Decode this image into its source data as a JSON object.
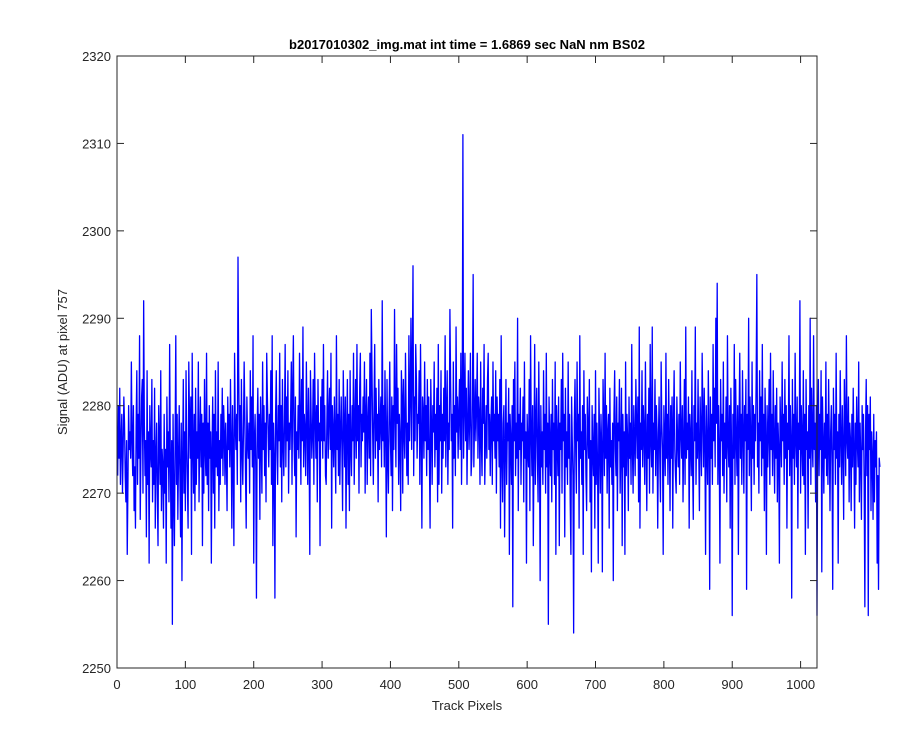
{
  "chart_data": {
    "type": "line",
    "title": "b2017010302_img.mat int time = 1.6869 sec  NaN nm BS02",
    "xlabel": "Track Pixels",
    "ylabel": "Signal (ADU) at pixel 757",
    "xlim": [
      0,
      1024
    ],
    "ylim": [
      2250,
      2320
    ],
    "xticks": [
      0,
      100,
      200,
      300,
      400,
      500,
      600,
      700,
      800,
      900,
      1000
    ],
    "yticks": [
      2250,
      2260,
      2270,
      2280,
      2290,
      2300,
      2310,
      2320
    ],
    "grid": false,
    "legend": "none",
    "line_color": "#0000ff",
    "series": [
      {
        "x_start": 1,
        "x_step": 1,
        "values": [
          2272,
          2280,
          2274,
          2282,
          2271,
          2276,
          2279,
          2270,
          2275,
          2281,
          2278,
          2272,
          2269,
          2276,
          2263,
          2271,
          2280,
          2275,
          2277,
          2274,
          2285,
          2276,
          2272,
          2280,
          2268,
          2273,
          2266,
          2278,
          2284,
          2271,
          2279,
          2274,
          2288,
          2267,
          2275,
          2281,
          2283,
          2270,
          2292,
          2278,
          2272,
          2276,
          2265,
          2284,
          2271,
          2277,
          2262,
          2280,
          2275,
          2273,
          2283,
          2269,
          2276,
          2271,
          2282,
          2266,
          2274,
          2278,
          2270,
          2264,
          2280,
          2276,
          2271,
          2284,
          2268,
          2275,
          2273,
          2266,
          2279,
          2270,
          2275,
          2262,
          2281,
          2273,
          2277,
          2269,
          2287,
          2274,
          2266,
          2276,
          2255,
          2279,
          2270,
          2264,
          2276,
          2288,
          2271,
          2279,
          2267,
          2274,
          2280,
          2272,
          2265,
          2278,
          2260,
          2274,
          2283,
          2270,
          2277,
          2268,
          2284,
          2275,
          2271,
          2266,
          2285,
          2279,
          2274,
          2281,
          2263,
          2286,
          2276,
          2270,
          2279,
          2268,
          2282,
          2271,
          2277,
          2274,
          2285,
          2269,
          2276,
          2281,
          2273,
          2279,
          2264,
          2278,
          2270,
          2283,
          2275,
          2272,
          2286,
          2271,
          2278,
          2268,
          2280,
          2274,
          2277,
          2262,
          2275,
          2281,
          2270,
          2279,
          2266,
          2284,
          2273,
          2277,
          2272,
          2285,
          2268,
          2276,
          2271,
          2279,
          2274,
          2282,
          2272,
          2280,
          2277,
          2271,
          2278,
          2274,
          2268,
          2281,
          2275,
          2279,
          2273,
          2283,
          2276,
          2266,
          2280,
          2274,
          2264,
          2286,
          2278,
          2275,
          2279,
          2271,
          2297,
          2284,
          2276,
          2280,
          2269,
          2283,
          2275,
          2271,
          2277,
          2285,
          2279,
          2272,
          2266,
          2281,
          2276,
          2274,
          2278,
          2270,
          2284,
          2275,
          2281,
          2273,
          2288,
          2262,
          2276,
          2279,
          2273,
          2258,
          2277,
          2282,
          2274,
          2279,
          2267,
          2281,
          2276,
          2270,
          2285,
          2275,
          2280,
          2272,
          2278,
          2269,
          2286,
          2281,
          2277,
          2273,
          2279,
          2275,
          2284,
          2271,
          2288,
          2264,
          2278,
          2274,
          2258,
          2279,
          2284,
          2275,
          2271,
          2280,
          2276,
          2286,
          2273,
          2280,
          2269,
          2283,
          2276,
          2272,
          2278,
          2287,
          2273,
          2281,
          2276,
          2284,
          2270,
          2278,
          2275,
          2279,
          2285,
          2271,
          2282,
          2288,
          2276,
          2272,
          2281,
          2265,
          2277,
          2275,
          2280,
          2274,
          2286,
          2279,
          2271,
          2283,
          2276,
          2289,
          2273,
          2279,
          2277,
          2272,
          2285,
          2278,
          2271,
          2282,
          2276,
          2263,
          2284,
          2279,
          2274,
          2277,
          2283,
          2271,
          2286,
          2279,
          2274,
          2280,
          2269,
          2283,
          2276,
          2278,
          2264,
          2281,
          2276,
          2283,
          2274,
          2287,
          2276,
          2280,
          2272,
          2271,
          2278,
          2284,
          2274,
          2279,
          2282,
          2275,
          2286,
          2266,
          2280,
          2277,
          2273,
          2281,
          2276,
          2270,
          2288,
          2275,
          2279,
          2272,
          2283,
          2271,
          2277,
          2281,
          2275,
          2268,
          2284,
          2278,
          2273,
          2281,
          2266,
          2277,
          2283,
          2271,
          2279,
          2268,
          2284,
          2275,
          2272,
          2280,
          2276,
          2286,
          2271,
          2278,
          2283,
          2274,
          2287,
          2276,
          2280,
          2270,
          2282,
          2286,
          2273,
          2279,
          2276,
          2281,
          2277,
          2285,
          2270,
          2279,
          2283,
          2271,
          2278,
          2281,
          2274,
          2286,
          2272,
          2291,
          2284,
          2277,
          2271,
          2280,
          2287,
          2274,
          2282,
          2276,
          2279,
          2269,
          2283,
          2275,
          2278,
          2281,
          2273,
          2292,
          2276,
          2280,
          2273,
          2284,
          2277,
          2265,
          2283,
          2274,
          2270,
          2279,
          2285,
          2276,
          2272,
          2281,
          2268,
          2280,
          2275,
          2291,
          2279,
          2273,
          2287,
          2278,
          2282,
          2271,
          2279,
          2276,
          2268,
          2284,
          2281,
          2270,
          2283,
          2277,
          2274,
          2286,
          2279,
          2272,
          2278,
          2271,
          2288,
          2276,
          2281,
          2290,
          2275,
          2285,
          2296,
          2272,
          2281,
          2276,
          2287,
          2283,
          2274,
          2279,
          2278,
          2284,
          2271,
          2287,
          2277,
          2266,
          2281,
          2279,
          2274,
          2285,
          2276,
          2280,
          2272,
          2283,
          2275,
          2281,
          2274,
          2266,
          2283,
          2278,
          2271,
          2280,
          2277,
          2285,
          2273,
          2279,
          2275,
          2282,
          2269,
          2287,
          2271,
          2280,
          2276,
          2284,
          2270,
          2279,
          2274,
          2282,
          2276,
          2288,
          2273,
          2279,
          2284,
          2271,
          2278,
          2275,
          2291,
          2283,
          2276,
          2279,
          2266,
          2285,
          2274,
          2280,
          2272,
          2289,
          2277,
          2281,
          2274,
          2279,
          2283,
          2275,
          2286,
          2271,
          2279,
          2311,
          2274,
          2280,
          2286,
          2276,
          2282,
          2271,
          2278,
          2284,
          2275,
          2279,
          2286,
          2272,
          2274,
          2281,
          2295,
          2273,
          2278,
          2283,
          2276,
          2280,
          2286,
          2274,
          2281,
          2279,
          2271,
          2285,
          2276,
          2272,
          2282,
          2278,
          2287,
          2271,
          2276,
          2280,
          2274,
          2283,
          2286,
          2275,
          2279,
          2272,
          2278,
          2281,
          2271,
          2285,
          2276,
          2279,
          2274,
          2284,
          2270,
          2281,
          2276,
          2279,
          2273,
          2283,
          2266,
          2288,
          2274,
          2269,
          2278,
          2280,
          2265,
          2275,
          2283,
          2271,
          2278,
          2276,
          2282,
          2263,
          2279,
          2276,
          2271,
          2280,
          2257,
          2283,
          2276,
          2285,
          2272,
          2278,
          2274,
          2290,
          2268,
          2279,
          2275,
          2282,
          2271,
          2278,
          2276,
          2281,
          2269,
          2285,
          2274,
          2277,
          2262,
          2279,
          2275,
          2273,
          2283,
          2268,
          2288,
          2277,
          2272,
          2280,
          2264,
          2275,
          2287,
          2271,
          2278,
          2282,
          2274,
          2269,
          2285,
          2276,
          2260,
          2280,
          2273,
          2277,
          2271,
          2284,
          2275,
          2279,
          2270,
          2286,
          2273,
          2278,
          2255,
          2281,
          2276,
          2272,
          2279,
          2269,
          2283,
          2275,
          2278,
          2271,
          2285,
          2263,
          2280,
          2276,
          2272,
          2281,
          2264,
          2278,
          2275,
          2283,
          2270,
          2286,
          2276,
          2279,
          2265,
          2282,
          2273,
          2277,
          2271,
          2285,
          2274,
          2279,
          2269,
          2263,
          2281,
          2276,
          2272,
          2254,
          2278,
          2283,
          2275,
          2270,
          2285,
          2276,
          2279,
          2266,
          2288,
          2274,
          2277,
          2271,
          2280,
          2263,
          2284,
          2275,
          2279,
          2272,
          2268,
          2281,
          2277,
          2274,
          2283,
          2269,
          2276,
          2261,
          2280,
          2275,
          2272,
          2279,
          2266,
          2284,
          2271,
          2278,
          2273,
          2262,
          2282,
          2276,
          2270,
          2279,
          2275,
          2261,
          2283,
          2278,
          2272,
          2286,
          2274,
          2280,
          2270,
          2277,
          2279,
          2266,
          2282,
          2273,
          2276,
          2271,
          2278,
          2260,
          2279,
          2284,
          2275,
          2272,
          2281,
          2268,
          2278,
          2276,
          2283,
          2270,
          2275,
          2282,
          2264,
          2279,
          2273,
          2277,
          2263,
          2285,
          2272,
          2279,
          2276,
          2268,
          2281,
          2274,
          2278,
          2271,
          2287,
          2275,
          2270,
          2280,
          2276,
          2272,
          2283,
          2278,
          2274,
          2281,
          2269,
          2289,
          2266,
          2278,
          2275,
          2284,
          2273,
          2280,
          2277,
          2271,
          2285,
          2276,
          2268,
          2279,
          2274,
          2282,
          2270,
          2287,
          2276,
          2273,
          2289,
          2270,
          2278,
          2275,
          2283,
          2272,
          2280,
          2277,
          2266,
          2276,
          2281,
          2274,
          2269,
          2285,
          2278,
          2275,
          2263,
          2280,
          2276,
          2272,
          2286,
          2274,
          2279,
          2271,
          2283,
          2276,
          2268,
          2280,
          2274,
          2281,
          2266,
          2278,
          2284,
          2275,
          2272,
          2270,
          2281,
          2276,
          2273,
          2279,
          2271,
          2285,
          2277,
          2274,
          2280,
          2269,
          2276,
          2283,
          2271,
          2289,
          2274,
          2278,
          2275,
          2281,
          2266,
          2279,
          2276,
          2272,
          2284,
          2273,
          2267,
          2280,
          2276,
          2289,
          2271,
          2278,
          2274,
          2283,
          2275,
          2268,
          2281,
          2277,
          2272,
          2286,
          2279,
          2273,
          2282,
          2276,
          2263,
          2280,
          2275,
          2271,
          2284,
          2277,
          2259,
          2281,
          2274,
          2279,
          2271,
          2287,
          2276,
          2282,
          2273,
          2290,
          2278,
          2294,
          2271,
          2280,
          2275,
          2262,
          2283,
          2276,
          2279,
          2272,
          2285,
          2270,
          2278,
          2274,
          2281,
          2269,
          2288,
          2276,
          2273,
          2280,
          2266,
          2282,
          2275,
          2256,
          2279,
          2274,
          2287,
          2271,
          2283,
          2276,
          2272,
          2280,
          2263,
          2278,
          2286,
          2274,
          2279,
          2271,
          2284,
          2277,
          2270,
          2280,
          2276,
          2283,
          2259,
          2279,
          2275,
          2290,
          2272,
          2281,
          2276,
          2268,
          2285,
          2274,
          2280,
          2271,
          2279,
          2276,
          2283,
          2295,
          2273,
          2278,
          2270,
          2284,
          2276,
          2281,
          2272,
          2287,
          2274,
          2279,
          2268,
          2282,
          2276,
          2263,
          2280,
          2273,
          2277,
          2283,
          2271,
          2286,
          2275,
          2279,
          2272,
          2284,
          2276,
          2270,
          2280,
          2274,
          2282,
          2269,
          2278,
          2275,
          2262,
          2281,
          2277,
          2273,
          2285,
          2276,
          2279,
          2271,
          2283,
          2274,
          2280,
          2266,
          2278,
          2275,
          2288,
          2272,
          2280,
          2276,
          2258,
          2283,
          2274,
          2279,
          2271,
          2286,
          2276,
          2273,
          2281,
          2266,
          2278,
          2275,
          2292,
          2270,
          2280,
          2276,
          2272,
          2284,
          2271,
          2279,
          2263,
          2283,
          2275,
          2277,
          2266,
          2280,
          2274,
          2290,
          2271,
          2282,
          2276,
          2273,
          2288,
          2275,
          2278,
          2269,
          2280,
          2256,
          2276,
          2283,
          2272,
          2279,
          2275,
          2284,
          2261,
          2281,
          2276,
          2270,
          2278,
          2274,
          2285,
          2272,
          2279,
          2271,
          2283,
          2276,
          2268,
          2277,
          2280,
          2273,
          2259,
          2282,
          2275,
          2279,
          2271,
          2286,
          2274,
          2277,
          2262,
          2279,
          2273,
          2284,
          2276,
          2271,
          2280,
          2275,
          2267,
          2283,
          2278,
          2272,
          2288,
          2276,
          2274,
          2281,
          2269,
          2278,
          2276,
          2268,
          2279,
          2273,
          2282,
          2275,
          2266,
          2278,
          2271,
          2281,
          2276,
          2273,
          2285,
          2269,
          2278,
          2274,
          2267,
          2280,
          2275,
          2279,
          2271,
          2257,
          2277,
          2283,
          2272,
          2280,
          2256,
          2279,
          2275,
          2281,
          2268,
          2277,
          2274,
          2267,
          2279,
          2269,
          2276,
          2273,
          2277,
          2262,
          2272,
          2259,
          2274,
          2273
        ]
      }
    ]
  }
}
